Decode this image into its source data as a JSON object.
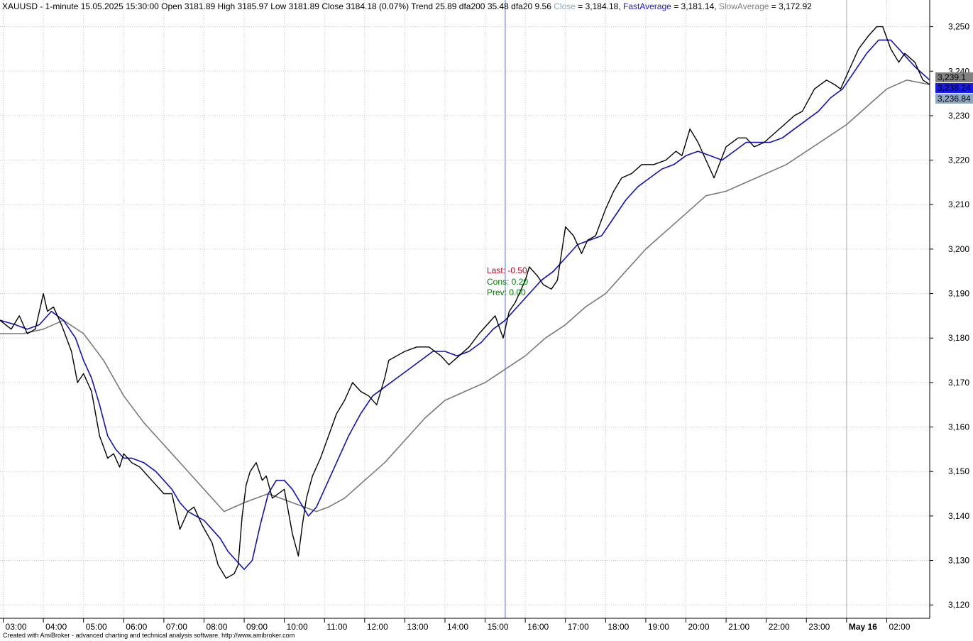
{
  "header": {
    "symbol_line": "XAUUSD - 1-minute 15.05.2025 15:30:00 Open 3181.89 High 3185.97 Low 3181.89 Close 3184.18 (0.07%) Trend 25.89 dfa200 35.48 dfa20 9.56",
    "close_label": "Close",
    "close_value": " = 3,184.18,",
    "fast_label": "FastAverage",
    "fast_value": " = 3,181.14,",
    "slow_label": "SlowAverage",
    "slow_value": " = 3,172.92"
  },
  "annotation": {
    "last": "Last: -0.50",
    "cons": "Cons: 0.20",
    "prev": "Prev: 0.00"
  },
  "footer": "Created with AmiBroker - advanced charting and technical analysis software. http://www.amibroker.com",
  "colors": {
    "price": "#000000",
    "fast": "#1010c0",
    "slow": "#7a7a7a",
    "cursor": "#a8b4f4",
    "last": "#c00020",
    "cons": "#008000",
    "prev": "#008000",
    "close_label": "#8aa8c0",
    "fast_label": "#1a1acc",
    "slow_label": "#808080"
  },
  "chart_data": {
    "type": "line",
    "ylim": [
      3117,
      3256
    ],
    "y_ticks": [
      {
        "value": 3120,
        "label": "3,120"
      },
      {
        "value": 3130,
        "label": "3,130"
      },
      {
        "value": 3140,
        "label": "3,140"
      },
      {
        "value": 3150,
        "label": "3,150"
      },
      {
        "value": 3160,
        "label": "3,160"
      },
      {
        "value": 3170,
        "label": "3,170"
      },
      {
        "value": 3180,
        "label": "3,180"
      },
      {
        "value": 3190,
        "label": "3,190"
      },
      {
        "value": 3200,
        "label": "3,200"
      },
      {
        "value": 3210,
        "label": "3,210"
      },
      {
        "value": 3220,
        "label": "3,220"
      },
      {
        "value": 3230,
        "label": "3,230"
      },
      {
        "value": 3240,
        "label": "3,240"
      },
      {
        "value": 3250,
        "label": "3,250"
      }
    ],
    "xlim": [
      2.92,
      26.07
    ],
    "x_ticks": [
      {
        "value": 3,
        "label": "03:00"
      },
      {
        "value": 4,
        "label": "04:00"
      },
      {
        "value": 5,
        "label": "05:00"
      },
      {
        "value": 6,
        "label": "06:00"
      },
      {
        "value": 7,
        "label": "07:00"
      },
      {
        "value": 8,
        "label": "08:00"
      },
      {
        "value": 9,
        "label": "09:00"
      },
      {
        "value": 10,
        "label": "10:00"
      },
      {
        "value": 11,
        "label": "11:00"
      },
      {
        "value": 12,
        "label": "12:00"
      },
      {
        "value": 13,
        "label": "13:00"
      },
      {
        "value": 14,
        "label": "14:00"
      },
      {
        "value": 15,
        "label": "15:00"
      },
      {
        "value": 16,
        "label": "16:00"
      },
      {
        "value": 17,
        "label": "17:00"
      },
      {
        "value": 18,
        "label": "18:00"
      },
      {
        "value": 19,
        "label": "19:00"
      },
      {
        "value": 20,
        "label": "20:00"
      },
      {
        "value": 21,
        "label": "21:00"
      },
      {
        "value": 22,
        "label": "22:00"
      },
      {
        "value": 23,
        "label": "23:00"
      },
      {
        "value": 24,
        "label": "May 16",
        "bold": true
      },
      {
        "value": 25,
        "label": "02:00"
      }
    ],
    "cursor_x": 15.5,
    "grid": true,
    "series": [
      {
        "name": "Close",
        "x": [
          2.92,
          3.2,
          3.4,
          3.6,
          3.8,
          4.0,
          4.1,
          4.25,
          4.45,
          4.7,
          4.85,
          5.0,
          5.2,
          5.4,
          5.6,
          5.75,
          5.9,
          6.0,
          6.2,
          6.4,
          6.7,
          7.0,
          7.2,
          7.4,
          7.6,
          7.75,
          7.95,
          8.2,
          8.35,
          8.55,
          8.75,
          8.85,
          8.95,
          9.05,
          9.15,
          9.3,
          9.45,
          9.55,
          9.7,
          9.85,
          10.0,
          10.2,
          10.35,
          10.45,
          10.55,
          10.7,
          10.9,
          11.1,
          11.3,
          11.5,
          11.7,
          11.9,
          12.1,
          12.3,
          12.5,
          12.6,
          12.8,
          13.0,
          13.3,
          13.6,
          13.9,
          14.1,
          14.35,
          14.6,
          14.85,
          15.05,
          15.25,
          15.45,
          15.6,
          15.75,
          16.0,
          16.1,
          16.3,
          16.45,
          16.65,
          16.8,
          17.0,
          17.2,
          17.4,
          17.55,
          17.75,
          18.0,
          18.2,
          18.4,
          18.65,
          18.9,
          19.2,
          19.5,
          19.75,
          19.9,
          20.1,
          20.3,
          20.5,
          20.7,
          21.0,
          21.3,
          21.5,
          21.7,
          21.95,
          22.2,
          22.45,
          22.7,
          22.9,
          23.2,
          23.5,
          23.7,
          23.85,
          24.1,
          24.3,
          24.55,
          24.75,
          24.9,
          25.1,
          25.3,
          25.45,
          25.7,
          25.9,
          26.07
        ],
        "values": [
          3184,
          3182,
          3185,
          3181,
          3182,
          3190,
          3186,
          3187,
          3183,
          3177,
          3170,
          3172,
          3168,
          3158,
          3153,
          3154,
          3151,
          3154,
          3152,
          3151,
          3148,
          3145,
          3145,
          3137,
          3141,
          3142,
          3138,
          3134,
          3129,
          3126,
          3127,
          3129,
          3140,
          3147,
          3150,
          3152,
          3148,
          3149,
          3144,
          3145,
          3146,
          3136,
          3131,
          3138,
          3144,
          3149,
          3153,
          3158,
          3163,
          3166,
          3170,
          3168,
          3167,
          3165,
          3171,
          3175,
          3176,
          3177,
          3178,
          3178,
          3176,
          3174,
          3176,
          3178,
          3181,
          3183,
          3185,
          3180,
          3186,
          3188,
          3193,
          3196,
          3194,
          3192,
          3191,
          3193,
          3205,
          3203,
          3199,
          3202,
          3203,
          3209,
          3213,
          3216,
          3217,
          3219,
          3219,
          3220,
          3222,
          3221,
          3227,
          3224,
          3220,
          3216,
          3223,
          3225,
          3225,
          3223,
          3224,
          3226,
          3228,
          3230,
          3231,
          3236,
          3238,
          3237,
          3236,
          3241,
          3245,
          3248,
          3250,
          3250,
          3245,
          3242,
          3244,
          3242,
          3238,
          3237
        ]
      },
      {
        "name": "FastAverage",
        "x": [
          2.92,
          3.3,
          3.6,
          3.9,
          4.2,
          4.5,
          4.8,
          5.0,
          5.2,
          5.4,
          5.6,
          5.8,
          6.0,
          6.2,
          6.5,
          6.8,
          7.0,
          7.2,
          7.4,
          7.6,
          7.8,
          8.0,
          8.2,
          8.4,
          8.6,
          8.8,
          9.0,
          9.2,
          9.4,
          9.6,
          9.8,
          10.0,
          10.2,
          10.4,
          10.6,
          10.8,
          11.0,
          11.3,
          11.6,
          11.9,
          12.2,
          12.5,
          12.8,
          13.1,
          13.4,
          13.7,
          14.0,
          14.3,
          14.6,
          14.9,
          15.2,
          15.5,
          15.8,
          16.1,
          16.4,
          16.7,
          17.0,
          17.3,
          17.6,
          17.9,
          18.2,
          18.5,
          18.8,
          19.1,
          19.4,
          19.7,
          20.0,
          20.3,
          20.6,
          20.9,
          21.2,
          21.5,
          21.8,
          22.1,
          22.4,
          22.7,
          23.0,
          23.3,
          23.6,
          23.9,
          24.2,
          24.5,
          24.8,
          25.1,
          25.4,
          25.7,
          26.07
        ],
        "values": [
          3184,
          3183,
          3182,
          3183,
          3186,
          3184,
          3180,
          3175,
          3171,
          3165,
          3158,
          3155,
          3153,
          3153,
          3152,
          3150,
          3148,
          3146,
          3143,
          3141,
          3140,
          3139,
          3137,
          3135,
          3132,
          3130,
          3128,
          3130,
          3138,
          3145,
          3148,
          3148,
          3146,
          3143,
          3140,
          3142,
          3146,
          3152,
          3158,
          3163,
          3167,
          3169,
          3171,
          3173,
          3175,
          3177,
          3177,
          3176,
          3177,
          3179,
          3182,
          3184,
          3187,
          3190,
          3193,
          3195,
          3198,
          3201,
          3202,
          3203,
          3207,
          3211,
          3214,
          3216,
          3218,
          3219,
          3221,
          3222,
          3221,
          3220,
          3222,
          3224,
          3224,
          3224,
          3225,
          3227,
          3229,
          3231,
          3234,
          3236,
          3240,
          3244,
          3247,
          3247,
          3244,
          3241,
          3238
        ]
      },
      {
        "name": "SlowAverage",
        "x": [
          2.92,
          3.5,
          4.0,
          4.5,
          5.0,
          5.5,
          6.0,
          6.5,
          7.0,
          7.5,
          8.0,
          8.5,
          9.0,
          9.3,
          9.6,
          9.9,
          10.2,
          10.5,
          10.8,
          11.1,
          11.5,
          12.0,
          12.5,
          13.0,
          13.5,
          14.0,
          14.5,
          15.0,
          15.5,
          16.0,
          16.5,
          17.0,
          17.5,
          18.0,
          18.5,
          19.0,
          19.5,
          20.0,
          20.5,
          21.0,
          21.5,
          22.0,
          22.5,
          23.0,
          23.5,
          24.0,
          24.5,
          25.0,
          25.5,
          26.07
        ],
        "values": [
          3181,
          3181,
          3182,
          3184,
          3181,
          3175,
          3167,
          3161,
          3156,
          3151,
          3146,
          3141,
          3143,
          3144,
          3145,
          3144,
          3143,
          3142,
          3141,
          3142,
          3144,
          3148,
          3152,
          3157,
          3162,
          3166,
          3168,
          3170,
          3173,
          3176,
          3180,
          3183,
          3187,
          3190,
          3195,
          3200,
          3204,
          3208,
          3212,
          3213,
          3215,
          3217,
          3219,
          3222,
          3225,
          3228,
          3232,
          3236,
          3238,
          3237
        ]
      }
    ],
    "price_tags": [
      {
        "value": 3239.1,
        "label": "3,239.1",
        "bg": "#808080",
        "fg": "#000000"
      },
      {
        "value": 3238.24,
        "label": "3,238.24",
        "bg": "#1a1ae6",
        "fg": "#ffffff"
      },
      {
        "value": 3236.84,
        "label": "3,236.84",
        "bg": "#8fa9c4",
        "fg": "#000000"
      }
    ]
  }
}
